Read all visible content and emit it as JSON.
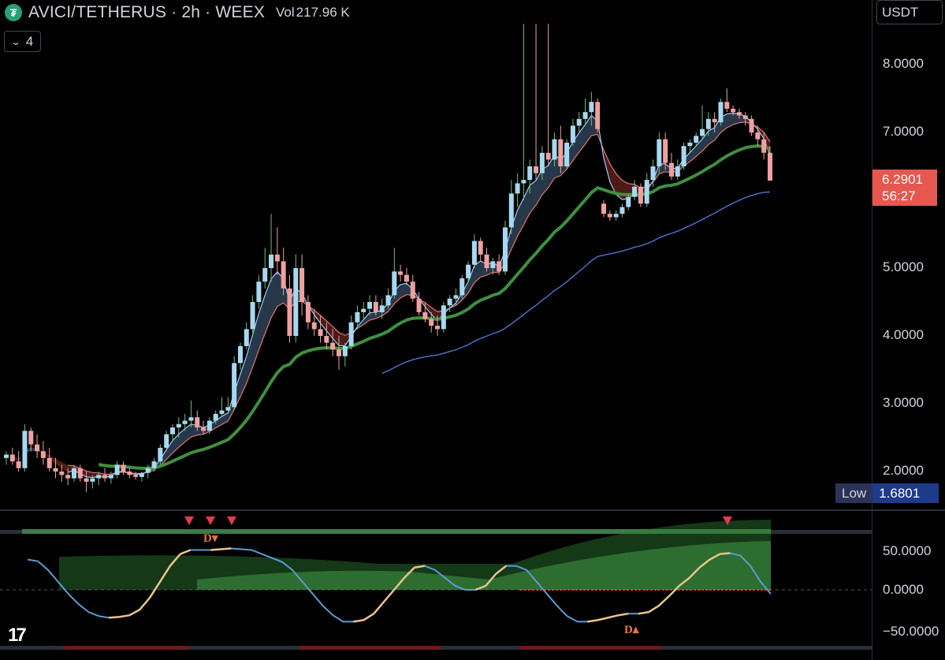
{
  "header": {
    "symbol_line": "AVICI/TETHERUS · 2h · WEEX",
    "vol_label": "Vol",
    "vol_value": "217.96 K",
    "collapse_count": "4"
  },
  "price_scale": {
    "unit_button": "USDT",
    "labels": [
      "8.0000",
      "7.0000",
      "5.0000",
      "4.0000",
      "3.0000",
      "2.0000"
    ],
    "last_price": "6.2901",
    "countdown": "56:27",
    "low_label": "Low",
    "low_value": "1.6801"
  },
  "oscillator_scale": {
    "labels": [
      "50.0000",
      "0.0000",
      "−50.0000"
    ]
  },
  "colors": {
    "up": "#a8d8f0",
    "down": "#f0a0a0",
    "ema_fast": "#9ec9ff",
    "ema_slow": "#e57373",
    "ema_green": "#3f8f3f",
    "ema_blue": "#4f74d0",
    "price_tag": "#e5574f",
    "low_tag": "#1e3a8a",
    "osc_line": "#5b9bd5",
    "osc_up": "#e8c48c",
    "osc_fill": "#2e7d32"
  },
  "markers": {
    "divergence_label": "D"
  },
  "chart_data": {
    "type": "candlestick",
    "timeframe": "2h",
    "y_range": [
      1.55,
      8.6
    ],
    "candles": [
      [
        2.2,
        2.3,
        2.1,
        2.25
      ],
      [
        2.25,
        2.35,
        2.1,
        2.15
      ],
      [
        2.15,
        2.3,
        2.0,
        2.05
      ],
      [
        2.05,
        2.7,
        2.0,
        2.6
      ],
      [
        2.6,
        2.65,
        2.3,
        2.4
      ],
      [
        2.4,
        2.55,
        2.2,
        2.3
      ],
      [
        2.3,
        2.45,
        2.1,
        2.2
      ],
      [
        2.2,
        2.35,
        2.0,
        2.05
      ],
      [
        2.05,
        2.2,
        1.9,
        2.0
      ],
      [
        2.0,
        2.1,
        1.85,
        1.95
      ],
      [
        1.95,
        2.05,
        1.8,
        1.9
      ],
      [
        1.9,
        2.1,
        1.85,
        2.05
      ],
      [
        2.05,
        2.1,
        1.85,
        1.9
      ],
      [
        1.9,
        2.0,
        1.7,
        1.85
      ],
      [
        1.85,
        1.95,
        1.75,
        1.9
      ],
      [
        1.9,
        2.0,
        1.8,
        1.95
      ],
      [
        1.95,
        2.05,
        1.85,
        1.9
      ],
      [
        1.9,
        2.0,
        1.82,
        1.95
      ],
      [
        1.95,
        2.15,
        1.9,
        2.1
      ],
      [
        2.1,
        2.15,
        1.95,
        2.0
      ],
      [
        2.0,
        2.05,
        1.9,
        1.95
      ],
      [
        1.95,
        2.0,
        1.88,
        1.92
      ],
      [
        1.92,
        2.0,
        1.85,
        1.98
      ],
      [
        1.98,
        2.1,
        1.9,
        2.05
      ],
      [
        2.05,
        2.2,
        2.0,
        2.15
      ],
      [
        2.15,
        2.4,
        2.1,
        2.35
      ],
      [
        2.35,
        2.6,
        2.3,
        2.55
      ],
      [
        2.55,
        2.7,
        2.45,
        2.65
      ],
      [
        2.65,
        2.8,
        2.5,
        2.7
      ],
      [
        2.7,
        2.85,
        2.6,
        2.75
      ],
      [
        2.75,
        3.05,
        2.65,
        2.8
      ],
      [
        2.8,
        2.9,
        2.6,
        2.65
      ],
      [
        2.65,
        2.75,
        2.55,
        2.6
      ],
      [
        2.6,
        2.8,
        2.55,
        2.75
      ],
      [
        2.75,
        2.9,
        2.7,
        2.85
      ],
      [
        2.85,
        3.1,
        2.8,
        2.9
      ],
      [
        2.9,
        3.1,
        2.85,
        2.95
      ],
      [
        2.95,
        3.7,
        2.9,
        3.6
      ],
      [
        3.6,
        3.9,
        3.5,
        3.85
      ],
      [
        3.85,
        4.2,
        3.8,
        4.1
      ],
      [
        4.1,
        4.6,
        4.0,
        4.5
      ],
      [
        4.5,
        4.9,
        4.4,
        4.8
      ],
      [
        4.8,
        5.3,
        4.7,
        5.0
      ],
      [
        5.0,
        5.8,
        4.8,
        5.2
      ],
      [
        5.2,
        5.6,
        4.9,
        5.1
      ],
      [
        5.1,
        5.3,
        4.6,
        4.7
      ],
      [
        4.7,
        4.9,
        3.9,
        4.0
      ],
      [
        4.0,
        5.2,
        3.9,
        5.0
      ],
      [
        5.0,
        5.2,
        4.3,
        4.5
      ],
      [
        4.5,
        4.6,
        4.1,
        4.2
      ],
      [
        4.2,
        4.4,
        4.0,
        4.1
      ],
      [
        4.1,
        4.3,
        3.9,
        4.0
      ],
      [
        4.0,
        4.2,
        3.8,
        3.9
      ],
      [
        3.9,
        4.1,
        3.7,
        3.8
      ],
      [
        3.8,
        4.0,
        3.5,
        3.7
      ],
      [
        3.7,
        3.9,
        3.55,
        3.85
      ],
      [
        3.85,
        4.3,
        3.8,
        4.2
      ],
      [
        4.2,
        4.45,
        4.1,
        4.35
      ],
      [
        4.35,
        4.5,
        4.25,
        4.4
      ],
      [
        4.4,
        4.6,
        4.3,
        4.5
      ],
      [
        4.5,
        4.6,
        4.3,
        4.35
      ],
      [
        4.35,
        4.55,
        4.25,
        4.45
      ],
      [
        4.45,
        4.7,
        4.4,
        4.6
      ],
      [
        4.6,
        5.3,
        4.55,
        4.95
      ],
      [
        4.95,
        5.05,
        4.8,
        4.9
      ],
      [
        4.9,
        5.0,
        4.75,
        4.8
      ],
      [
        4.8,
        4.9,
        4.5,
        4.55
      ],
      [
        4.55,
        4.65,
        4.3,
        4.35
      ],
      [
        4.35,
        4.5,
        4.2,
        4.25
      ],
      [
        4.25,
        4.35,
        4.05,
        4.15
      ],
      [
        4.15,
        4.3,
        4.0,
        4.1
      ],
      [
        4.1,
        4.5,
        4.05,
        4.45
      ],
      [
        4.45,
        4.6,
        4.35,
        4.55
      ],
      [
        4.55,
        4.7,
        4.45,
        4.6
      ],
      [
        4.6,
        4.9,
        4.55,
        4.85
      ],
      [
        4.85,
        5.1,
        4.8,
        5.05
      ],
      [
        5.05,
        5.5,
        5.0,
        5.4
      ],
      [
        5.4,
        5.45,
        5.1,
        5.2
      ],
      [
        5.2,
        5.3,
        4.95,
        5.0
      ],
      [
        5.0,
        5.15,
        4.9,
        5.1
      ],
      [
        5.1,
        5.2,
        4.9,
        4.95
      ],
      [
        4.95,
        5.7,
        4.9,
        5.6
      ],
      [
        5.6,
        6.3,
        5.5,
        6.1
      ],
      [
        6.1,
        6.4,
        5.9,
        6.25
      ],
      [
        6.25,
        8.6,
        6.0,
        6.3
      ],
      [
        6.3,
        6.6,
        6.1,
        6.5
      ],
      [
        6.5,
        8.6,
        6.3,
        6.4
      ],
      [
        6.4,
        6.8,
        6.3,
        6.7
      ],
      [
        6.7,
        8.6,
        6.5,
        6.6
      ],
      [
        6.6,
        7.0,
        6.5,
        6.9
      ],
      [
        6.9,
        7.1,
        6.4,
        6.5
      ],
      [
        6.5,
        6.9,
        6.45,
        6.85
      ],
      [
        6.85,
        7.2,
        6.8,
        7.1
      ],
      [
        7.1,
        7.3,
        7.0,
        7.2
      ],
      [
        7.2,
        7.5,
        7.1,
        7.3
      ],
      [
        7.3,
        7.6,
        7.1,
        7.45
      ],
      [
        7.45,
        7.5,
        7.0,
        7.05
      ],
      [
        5.95,
        6.0,
        5.75,
        5.8
      ],
      [
        5.8,
        5.85,
        5.7,
        5.75
      ],
      [
        5.75,
        5.85,
        5.7,
        5.8
      ],
      [
        5.8,
        5.95,
        5.75,
        5.9
      ],
      [
        5.9,
        6.1,
        5.85,
        6.05
      ],
      [
        6.05,
        6.3,
        6.0,
        6.2
      ],
      [
        6.2,
        6.25,
        5.9,
        5.95
      ],
      [
        5.95,
        6.4,
        5.9,
        6.3
      ],
      [
        6.3,
        6.6,
        6.2,
        6.5
      ],
      [
        6.5,
        7.0,
        6.4,
        6.9
      ],
      [
        6.9,
        7.0,
        6.45,
        6.55
      ],
      [
        6.55,
        6.7,
        6.3,
        6.35
      ],
      [
        6.35,
        6.6,
        6.3,
        6.5
      ],
      [
        6.5,
        6.85,
        6.45,
        6.8
      ],
      [
        6.8,
        6.9,
        6.7,
        6.85
      ],
      [
        6.85,
        7.0,
        6.8,
        6.95
      ],
      [
        6.95,
        7.4,
        6.9,
        7.05
      ],
      [
        7.05,
        7.3,
        6.95,
        7.2
      ],
      [
        7.2,
        7.3,
        7.0,
        7.15
      ],
      [
        7.15,
        7.5,
        7.1,
        7.45
      ],
      [
        7.45,
        7.65,
        7.3,
        7.35
      ],
      [
        7.35,
        7.4,
        7.25,
        7.3
      ],
      [
        7.3,
        7.35,
        7.2,
        7.25
      ],
      [
        7.25,
        7.3,
        7.1,
        7.2
      ],
      [
        7.2,
        7.25,
        6.95,
        7.0
      ],
      [
        7.0,
        7.1,
        6.8,
        6.9
      ],
      [
        6.9,
        7.0,
        6.6,
        6.7
      ],
      [
        6.7,
        6.8,
        6.3,
        6.29
      ]
    ],
    "ema_blue_start_index": 61,
    "ema_green_start_index": 5,
    "oscillator_range": [
      -60,
      85
    ],
    "oscillator": [
      38,
      36,
      25,
      10,
      -5,
      -18,
      -28,
      -33,
      -35,
      -34,
      -32,
      -25,
      -10,
      10,
      30,
      45,
      50,
      50,
      50,
      51,
      52,
      51,
      50,
      45,
      40,
      35,
      25,
      10,
      -5,
      -20,
      -32,
      -40,
      -40,
      -38,
      -30,
      -15,
      0,
      15,
      28,
      30,
      25,
      15,
      5,
      0,
      0,
      5,
      20,
      30,
      30,
      25,
      10,
      -5,
      -20,
      -33,
      -40,
      -40,
      -38,
      -35,
      -32,
      -30,
      -30,
      -28,
      -20,
      -8,
      5,
      15,
      28,
      38,
      45,
      46,
      43,
      30,
      10,
      -5
    ]
  }
}
